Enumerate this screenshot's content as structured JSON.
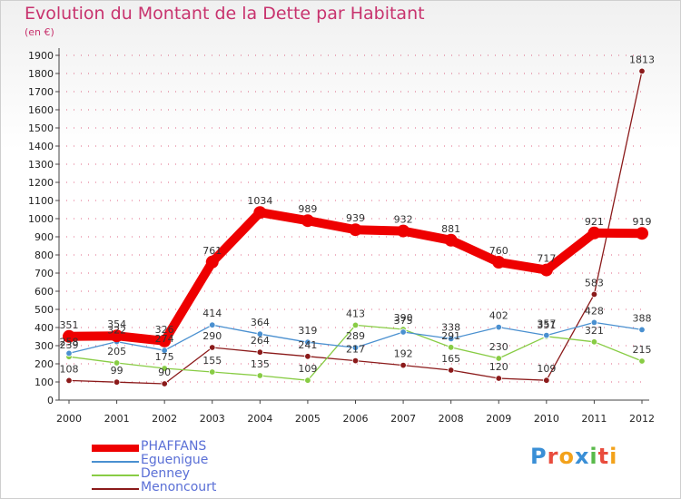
{
  "header": {
    "title": "Evolution du Montant de la Dette par Habitant",
    "subtitle": "(en €)"
  },
  "colors": {
    "title": "#c8336e",
    "axis": "#444444",
    "grid": "#cc0033",
    "legend_text": "#5a6fd6"
  },
  "logo": {
    "text": "Proxiti"
  },
  "chart_data": {
    "type": "line",
    "title": "Evolution du Montant de la Dette par Habitant",
    "subtitle": "(en €)",
    "xlabel": "",
    "ylabel": "",
    "ylim": [
      0,
      1900
    ],
    "yticks": [
      0,
      100,
      200,
      300,
      400,
      500,
      600,
      700,
      800,
      900,
      1000,
      1100,
      1200,
      1300,
      1400,
      1500,
      1600,
      1700,
      1800,
      1900
    ],
    "categories": [
      "2000",
      "2001",
      "2002",
      "2003",
      "2004",
      "2005",
      "2006",
      "2007",
      "2008",
      "2009",
      "2010",
      "2011",
      "2012"
    ],
    "legend_position": "bottom-left",
    "series": [
      {
        "name": "PHAFFANS",
        "color": "#ee0000",
        "values": [
          351,
          354,
          326,
          761,
          1034,
          989,
          939,
          932,
          881,
          760,
          717,
          921,
          919
        ],
        "labels": [
          "351",
          "354",
          "326",
          "761",
          "1034",
          "989",
          "939",
          "932",
          "881",
          "760",
          "717",
          "921",
          "919"
        ]
      },
      {
        "name": "Eguenigue",
        "color": "#4a90d0",
        "values": [
          258,
          322,
          274,
          414,
          364,
          319,
          289,
          375,
          338,
          402,
          357,
          428,
          388
        ],
        "labels": [
          "258",
          "322",
          "274",
          "414",
          "364",
          "319",
          "289",
          "375",
          "338",
          "402",
          "357",
          "428",
          "388"
        ]
      },
      {
        "name": "Denney",
        "color": "#88cc44",
        "values": [
          239,
          205,
          175,
          155,
          135,
          109,
          413,
          390,
          291,
          230,
          351,
          321,
          215
        ],
        "labels": [
          "239",
          "205",
          "175",
          "155",
          "135",
          "109",
          "413",
          "390",
          "291",
          "230",
          "351",
          "321",
          "215"
        ]
      },
      {
        "name": "Menoncourt",
        "color": "#8b1a1a",
        "values": [
          108,
          99,
          90,
          290,
          264,
          241,
          217,
          192,
          165,
          120,
          109,
          583,
          1813
        ],
        "labels": [
          "108",
          "99",
          "90",
          "290",
          "264",
          "241",
          "217",
          "192",
          "165",
          "120",
          "109",
          "583",
          "1813"
        ]
      }
    ]
  }
}
